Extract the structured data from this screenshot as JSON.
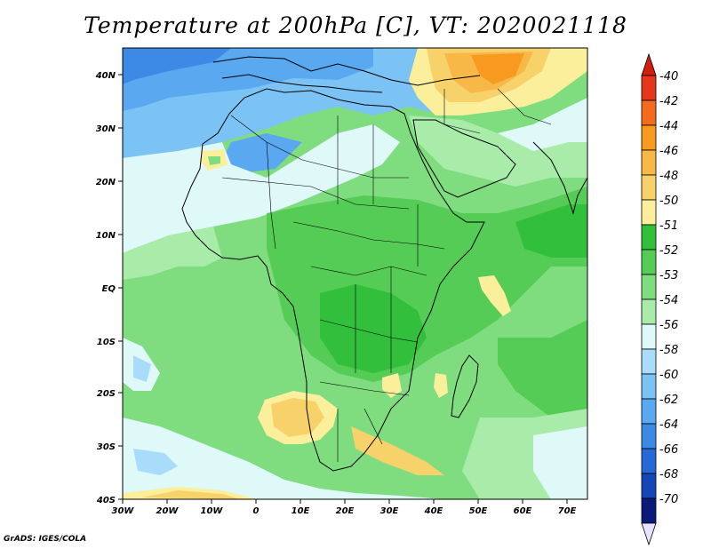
{
  "title": "Temperature at 200hPa [C], VT: 2020021118",
  "credit": "GrADS: IGES/COLA",
  "map": {
    "lon_range": [
      -30,
      75
    ],
    "lat_range": [
      -40,
      45
    ],
    "x_ticks": [
      "30W",
      "20W",
      "10W",
      "0",
      "10E",
      "20E",
      "30E",
      "40E",
      "50E",
      "60E",
      "70E"
    ],
    "y_ticks": [
      "40N",
      "30N",
      "20N",
      "10N",
      "EQ",
      "10S",
      "20S",
      "30S",
      "40S"
    ]
  },
  "colorbar": {
    "labels": [
      "-40",
      "-42",
      "-44",
      "-46",
      "-48",
      "-50",
      "-51",
      "-52",
      "-53",
      "-54",
      "-56",
      "-58",
      "-60",
      "-62",
      "-64",
      "-66",
      "-68",
      "-70"
    ],
    "colors": [
      "#e6361c",
      "#f26b1f",
      "#f79a1f",
      "#f7b847",
      "#f7d26b",
      "#fbef9c",
      "#32c03c",
      "#55cc55",
      "#7fdc7f",
      "#a9ecaa",
      "#dff8f8",
      "#a8dcfa",
      "#7cc3f5",
      "#5aa8ef",
      "#3c8ae6",
      "#2867d6",
      "#1446b8",
      "#0a1a7a"
    ],
    "top_arrow": "#d21e0c",
    "bottom_arrow": "#e8e4ff"
  }
}
